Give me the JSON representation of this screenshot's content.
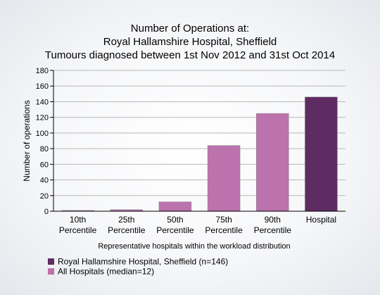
{
  "chart_data": {
    "type": "bar",
    "title_lines": [
      "Number of Operations at:",
      "Royal Hallamshire Hospital, Sheffield",
      "Tumours diagnosed between 1st Nov 2012 and 31st Oct 2014"
    ],
    "categories": [
      [
        "10th",
        "Percentile"
      ],
      [
        "25th",
        "Percentile"
      ],
      [
        "50th",
        "Percentile"
      ],
      [
        "75th",
        "Percentile"
      ],
      [
        "90th",
        "Percentile"
      ],
      [
        "Hospital"
      ]
    ],
    "values": [
      1,
      2,
      12,
      84,
      125,
      146
    ],
    "bar_series": [
      "all",
      "all",
      "all",
      "all",
      "all",
      "hospital"
    ],
    "xlabel": "Representative hospitals within the workload distribution",
    "ylabel": "Number of operations",
    "ylim": [
      0,
      180
    ],
    "yticks": [
      0,
      20,
      40,
      60,
      80,
      100,
      120,
      140,
      160,
      180
    ],
    "grid": true,
    "legend_position": "bottom-left",
    "legend": [
      {
        "key": "hospital",
        "label": "Royal Hallamshire Hospital, Sheffield (n=146)",
        "color": "#5e2c62"
      },
      {
        "key": "all",
        "label": "All Hospitals (median=12)",
        "color": "#bb72ad"
      }
    ]
  }
}
